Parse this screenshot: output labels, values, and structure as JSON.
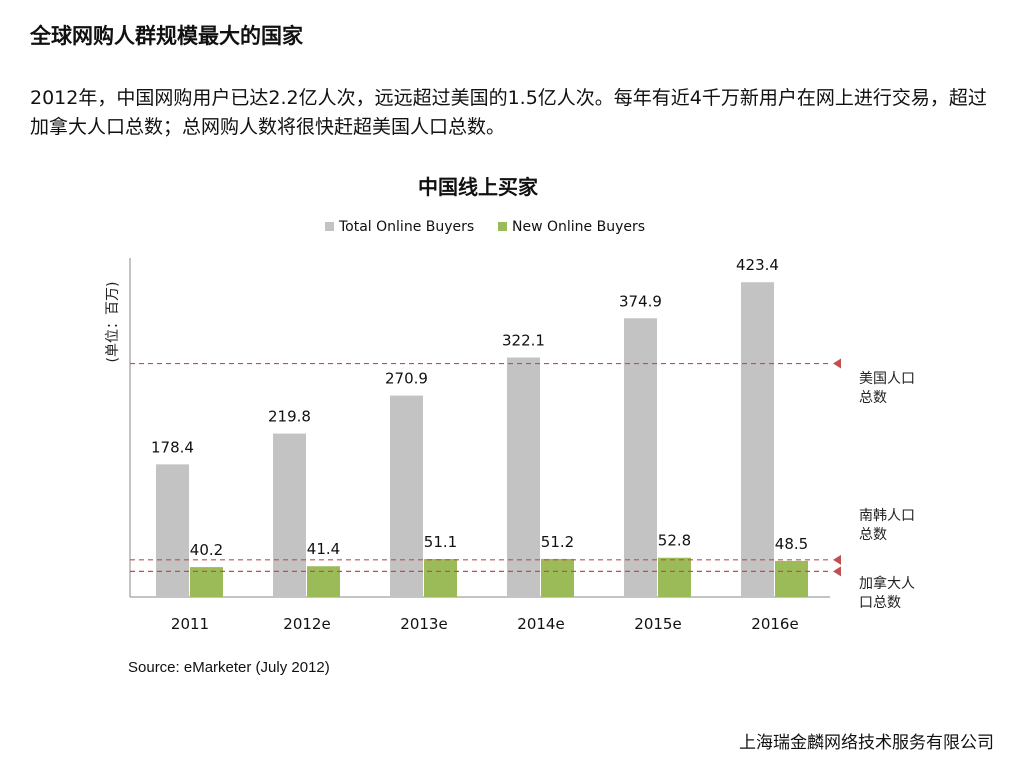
{
  "page": {
    "heading": "全球网购人群规模最大的国家",
    "intro": "2012年，中国网购用户已达2.2亿人次，远远超过美国的1.5亿人次。每年有近4千万新用户在网上进行交易，超过加拿大人口总数；总网购人数将很快赶超美国人口总数。",
    "source": "Source: eMarketer (July 2012)",
    "company": "上海瑞金麟网络技术服务有限公司"
  },
  "chart_data": {
    "type": "bar",
    "title": "中国线上买家",
    "ylabel": "(单位：百万)",
    "xlabel": "",
    "categories": [
      "2011",
      "2012e",
      "2013e",
      "2014e",
      "2015e",
      "2016e"
    ],
    "series": [
      {
        "name": "Total Online Buyers",
        "values": [
          178.4,
          219.8,
          270.9,
          322.1,
          374.9,
          423.4
        ],
        "color": "#c3c3c3"
      },
      {
        "name": "New Online Buyers",
        "values": [
          40.2,
          41.4,
          51.1,
          51.2,
          52.8,
          48.5
        ],
        "color": "#9bbb59"
      }
    ],
    "ylim": [
      0,
      460
    ],
    "grid": false,
    "legend": "top-center",
    "reference_lines": [
      {
        "label_lines": [
          "美国人口",
          "总数"
        ],
        "value": 314
      },
      {
        "label_lines": [
          "南韩人口",
          "总数"
        ],
        "value": 50
      },
      {
        "label_lines": [
          "加拿大人",
          "口总数"
        ],
        "value": 34.5
      }
    ],
    "reference_color": "#c0504d"
  }
}
